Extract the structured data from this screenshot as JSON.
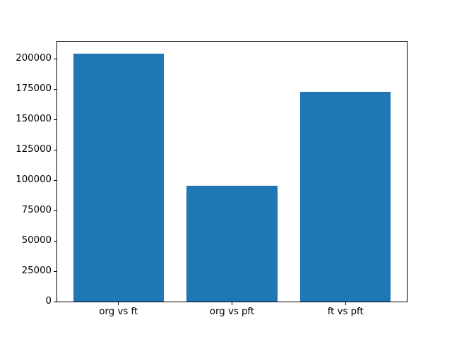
{
  "chart_data": {
    "type": "bar",
    "title": "",
    "xlabel": "",
    "ylabel": "",
    "categories": [
      "org vs ft",
      "org vs pft",
      "ft vs pft"
    ],
    "values": [
      204500,
      95500,
      173000
    ],
    "yticks": [
      0,
      25000,
      50000,
      75000,
      100000,
      125000,
      150000,
      175000,
      200000
    ],
    "ytick_labels": [
      "0",
      "25000",
      "50000",
      "75000",
      "100000",
      "125000",
      "150000",
      "175000",
      "200000"
    ],
    "ylim": [
      0,
      214200
    ],
    "bar_width_fraction": 0.8,
    "x_margin_fraction": 0.05,
    "grid": false,
    "legend": null,
    "bar_color": "#1f77b4",
    "spine_color": "#000000",
    "background_color": "#ffffff",
    "text_color": "#000000"
  }
}
